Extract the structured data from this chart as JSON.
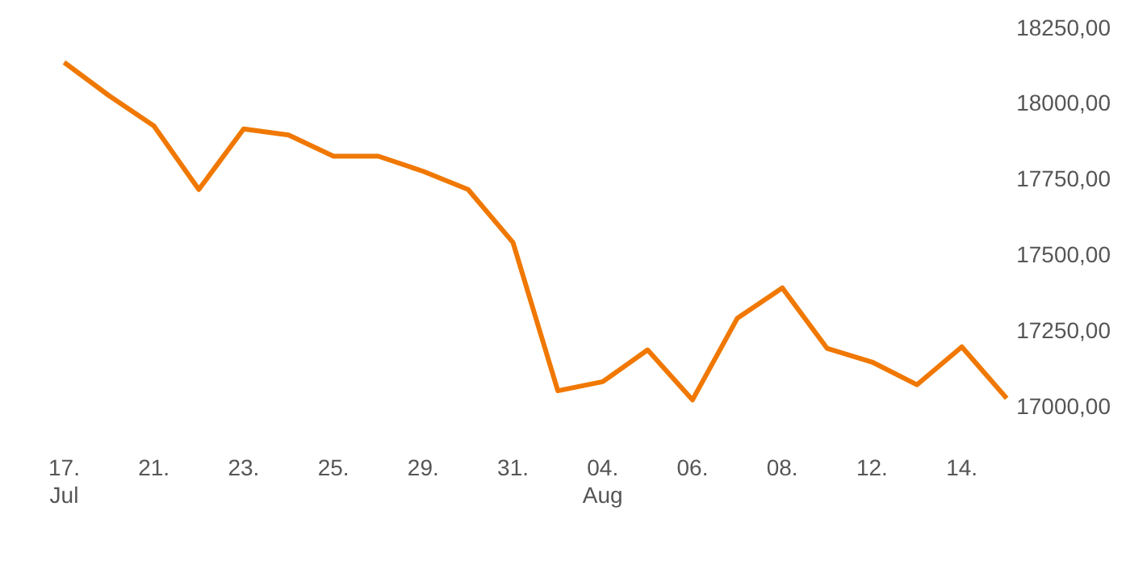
{
  "chart_data": {
    "type": "line",
    "categories": [
      "17.\nJul",
      null,
      "21.",
      null,
      "23.",
      null,
      "25.",
      null,
      "29.",
      null,
      "31.",
      null,
      "04.\nAug",
      null,
      "06.",
      null,
      "08.",
      null,
      "12.",
      null,
      "14.",
      null
    ],
    "series": [
      {
        "color": "#f07800",
        "values": [
          18140,
          18030,
          17930,
          17720,
          17920,
          17900,
          17830,
          17830,
          17780,
          17720,
          17545,
          17055,
          17085,
          17190,
          17025,
          17295,
          17395,
          17195,
          17150,
          17075,
          17200,
          17030
        ]
      }
    ],
    "ylim": [
      17000,
      18250
    ],
    "yticks": [
      {
        "value": 17000,
        "label": "17000,00"
      },
      {
        "value": 17250,
        "label": "17250,00"
      },
      {
        "value": 17500,
        "label": "17500,00"
      },
      {
        "value": 17750,
        "label": "17750,00"
      },
      {
        "value": 18000,
        "label": "18000,00"
      },
      {
        "value": 18250,
        "label": "18250,00"
      }
    ],
    "grid": false,
    "legend": false,
    "marker": "none",
    "line_style": "solid"
  }
}
